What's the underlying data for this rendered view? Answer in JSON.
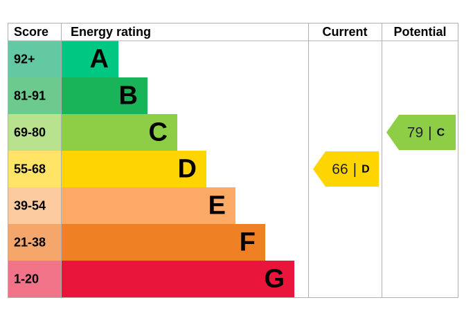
{
  "chart_data": {
    "type": "epc",
    "headers": [
      "Score",
      "Energy rating",
      "Current",
      "Potential"
    ],
    "bands": [
      {
        "score": "92+",
        "letter": "A",
        "color": "#00c781",
        "score_color": "#63c9a2"
      },
      {
        "score": "81-91",
        "letter": "B",
        "color": "#19b459",
        "score_color": "#6cca8e"
      },
      {
        "score": "69-80",
        "letter": "C",
        "color": "#8dce46",
        "score_color": "#b9e28f"
      },
      {
        "score": "55-68",
        "letter": "D",
        "color": "#ffd500",
        "score_color": "#ffe466"
      },
      {
        "score": "39-54",
        "letter": "E",
        "color": "#fcaa65",
        "score_color": "#fdcba0"
      },
      {
        "score": "21-38",
        "letter": "F",
        "color": "#ef8023",
        "score_color": "#f4a66b"
      },
      {
        "score": "1-20",
        "letter": "G",
        "color": "#e9153b",
        "score_color": "#f07388"
      }
    ],
    "separator": "|",
    "current": {
      "value": 66,
      "letter": "D"
    },
    "potential": {
      "value": 79,
      "letter": "C"
    }
  }
}
